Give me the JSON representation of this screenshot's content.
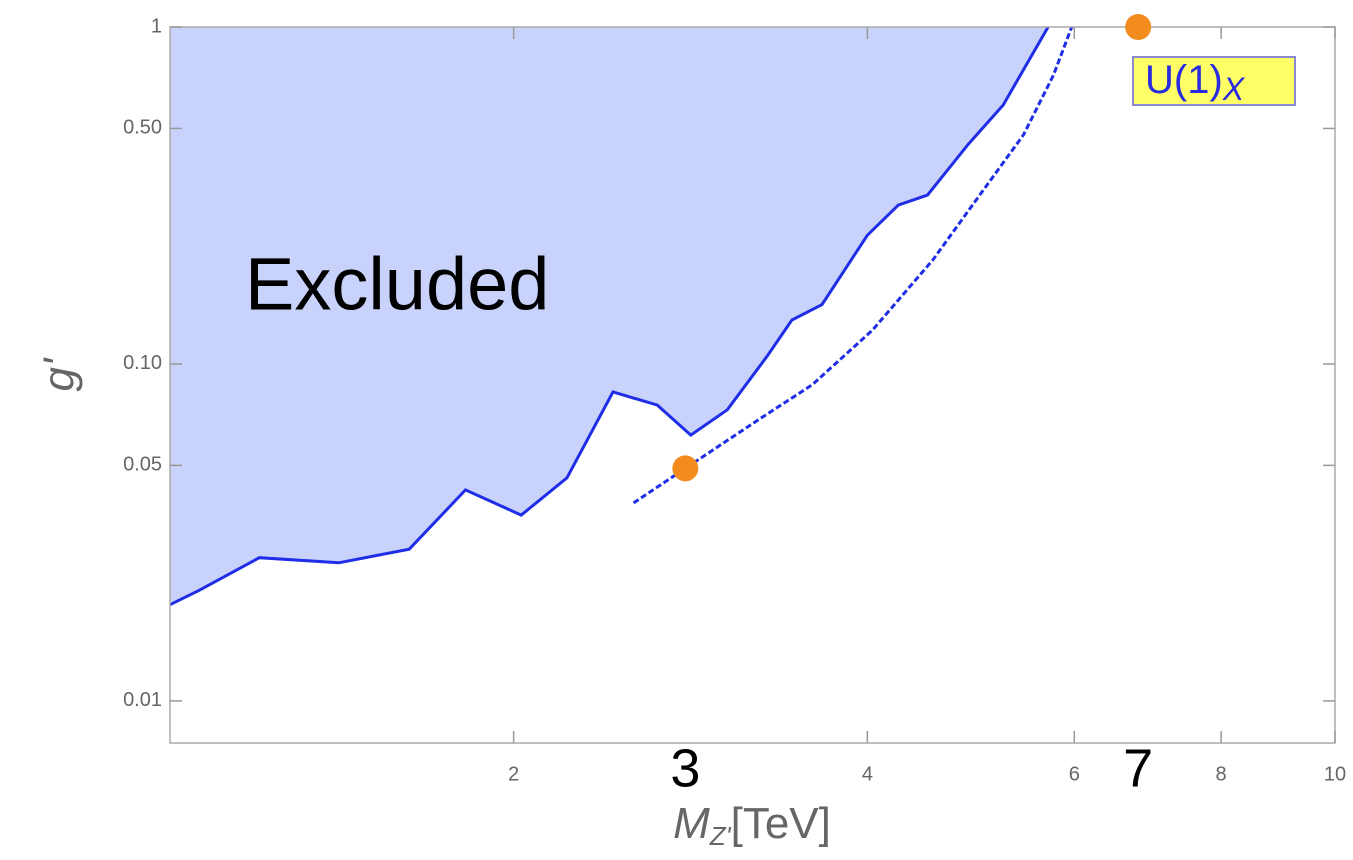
{
  "chart_data": {
    "type": "line",
    "xscale": "log",
    "yscale": "log",
    "xlim": [
      1.02,
      10
    ],
    "ylim": [
      0.0075,
      1
    ],
    "xticks": [
      2,
      4,
      6,
      8,
      10
    ],
    "yticks": [
      1,
      {
        "value": 0.5,
        "label": "0.50"
      },
      {
        "value": 0.1,
        "label": "0.10"
      },
      0.05,
      0.01
    ],
    "xlabel": {
      "main": "M",
      "sub": "Z'",
      "unit": "[TeV]"
    },
    "ylabel": "g'",
    "legend_box": {
      "main": "U(1)",
      "sub": "X",
      "color": "#ffff66"
    },
    "region_label": "Excluded",
    "annotations": [
      "3",
      "7"
    ],
    "series": [
      {
        "type": "area",
        "color": "#1f2ee6",
        "fill": "#c9d2fb",
        "x": [
          1.02,
          1.08,
          1.215,
          1.42,
          1.63,
          1.82,
          2.03,
          2.22,
          2.43,
          2.65,
          2.83,
          3.04,
          3.29,
          3.45,
          3.66,
          4.0,
          4.25,
          4.5,
          4.87,
          5.22,
          5.7
        ],
        "values": [
          0.0193,
          0.0213,
          0.0266,
          0.0257,
          0.0282,
          0.0423,
          0.0356,
          0.0459,
          0.0826,
          0.0755,
          0.0615,
          0.0731,
          0.106,
          0.135,
          0.15,
          0.241,
          0.296,
          0.317,
          0.447,
          0.587,
          1
        ]
      },
      {
        "type": "line",
        "dash": true,
        "color": "#1f2ee6",
        "x": [
          2.53,
          2.8,
          3.25,
          3.59,
          4.04,
          4.55,
          5.02,
          5.43,
          5.76,
          5.97
        ],
        "values": [
          0.0387,
          0.049,
          0.0692,
          0.0867,
          0.126,
          0.204,
          0.328,
          0.478,
          0.72,
          1
        ]
      },
      {
        "type": "scatter",
        "color": "#f28c1e",
        "x": [
          2.8,
          6.8
        ],
        "values": [
          0.049,
          1
        ]
      }
    ]
  }
}
